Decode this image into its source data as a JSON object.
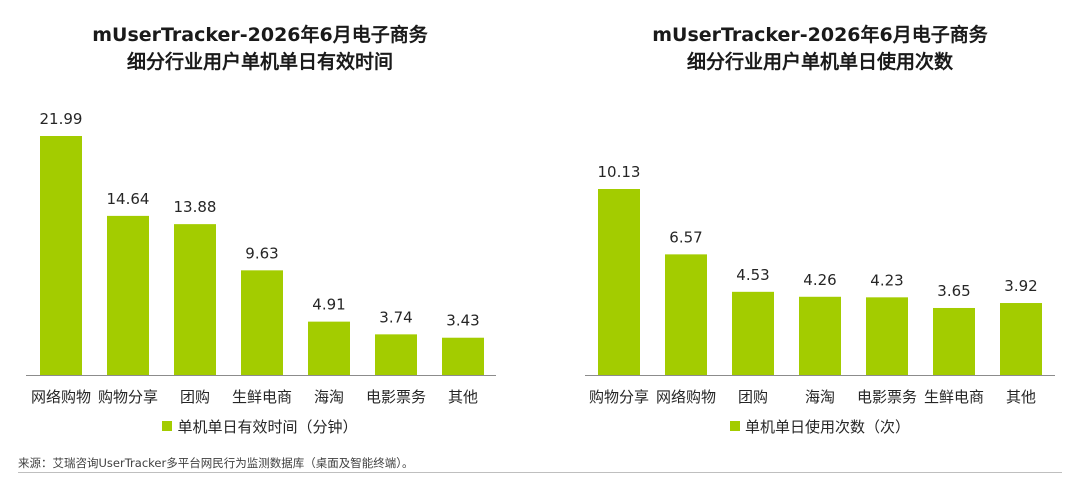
{
  "chart_data": [
    {
      "type": "bar",
      "title": "mUserTracker-2026年6月电子商务细分行业用户单机单日有效时间",
      "title_lines": [
        "mUserTracker-2026年6月电子商务",
        "细分行业用户单机单日有效时间"
      ],
      "categories": [
        "网络购物",
        "购物分享",
        "团购",
        "生鲜电商",
        "海淘",
        "电影票务",
        "其他"
      ],
      "series": [
        {
          "name": "单机单日有效时间（分钟）",
          "values": [
            21.99,
            14.64,
            13.88,
            9.63,
            4.91,
            3.74,
            3.43
          ]
        }
      ],
      "value_labels": [
        "21.99",
        "14.64",
        "13.88",
        "9.63",
        "4.91",
        "3.74",
        "3.43"
      ],
      "ylim": [
        0,
        22
      ],
      "grid": false,
      "legend_position": "bottom",
      "color": "#a3cc00"
    },
    {
      "type": "bar",
      "title": "mUserTracker-2026年6月电子商务细分行业用户单机单日使用次数",
      "title_lines": [
        "mUserTracker-2026年6月电子商务",
        "细分行业用户单机单日使用次数"
      ],
      "categories": [
        "购物分享",
        "网络购物",
        "团购",
        "海淘",
        "电影票务",
        "生鲜电商",
        "其他"
      ],
      "series": [
        {
          "name": "单机单日使用次数（次）",
          "values": [
            10.13,
            6.57,
            4.53,
            4.26,
            4.23,
            3.65,
            3.92
          ]
        }
      ],
      "value_labels": [
        "10.13",
        "6.57",
        "4.53",
        "4.26",
        "4.23",
        "3.65",
        "3.92"
      ],
      "ylim": [
        0,
        11
      ],
      "grid": false,
      "legend_position": "bottom",
      "color": "#a3cc00"
    }
  ],
  "footer": {
    "source": "来源：艾瑞咨询UserTracker多平台网民行为监测数据库（桌面及智能终端）。"
  }
}
